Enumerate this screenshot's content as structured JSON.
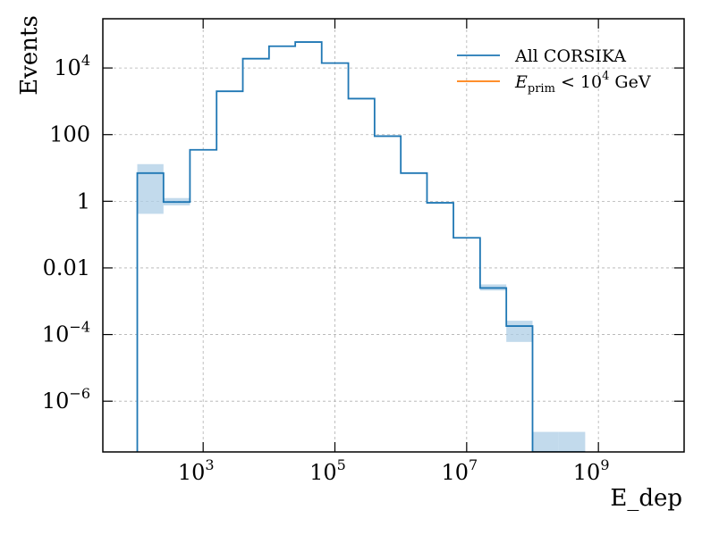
{
  "chart_data": {
    "type": "histogram",
    "xlabel": "E_dep",
    "ylabel": "Events",
    "xscale": "log",
    "yscale": "log",
    "xlim": [
      30,
      20000000000.0
    ],
    "ylim": [
      3e-08,
      300000
    ],
    "xticks": [
      {
        "value": 1000,
        "base": "10",
        "exp": "3"
      },
      {
        "value": 100000,
        "base": "10",
        "exp": "5"
      },
      {
        "value": 10000000,
        "base": "10",
        "exp": "7"
      },
      {
        "value": 1000000000,
        "base": "10",
        "exp": "9"
      }
    ],
    "yticks": [
      {
        "value": 1e-06,
        "base": "10",
        "exp": "−6"
      },
      {
        "value": 0.0001,
        "base": "10",
        "exp": "−4"
      },
      {
        "value": 0.01,
        "text": "0.01"
      },
      {
        "value": 1,
        "text": "1"
      },
      {
        "value": 100,
        "text": "100"
      },
      {
        "value": 10000,
        "base": "10",
        "exp": "4"
      }
    ],
    "grid": true,
    "legend_position": "top-right",
    "colors": {
      "all_corsika": "#1f77b4",
      "eprim_cut": "#ff7f0e",
      "band": "#aecde6"
    },
    "series": [
      {
        "name": "All CORSIKA",
        "color": "#1f77b4",
        "bin_edges": [
          100,
          250,
          630,
          1600,
          4000,
          10000,
          25000,
          63000,
          160000,
          400000,
          1000000,
          2500000,
          6300000,
          16000000,
          40000000,
          100000000,
          250000000,
          630000000
        ],
        "values": [
          7,
          0.95,
          35,
          2000,
          19000,
          45000,
          60000,
          14000,
          1200,
          90,
          7,
          0.9,
          0.08,
          0.0025,
          0.00018,
          3e-08,
          3e-08
        ],
        "err_low": [
          0.42,
          0.75,
          35,
          2000,
          19000,
          45000,
          60000,
          14000,
          1200,
          90,
          7,
          0.9,
          0.08,
          0.0021,
          6e-05,
          3e-08,
          3e-08
        ],
        "err_high": [
          13,
          1.25,
          35,
          2000,
          19000,
          45000,
          60000,
          14000,
          1200,
          90,
          7,
          0.9,
          0.08,
          0.0032,
          0.00026,
          1.2e-07,
          1.2e-07
        ]
      },
      {
        "name": "E_prim < 10^4 GeV",
        "color": "#ff7f0e",
        "values": []
      }
    ]
  },
  "legend": {
    "item1": "All CORSIKA",
    "item2_main": "E",
    "item2_sub": "prim",
    "item2_mid": " < 10",
    "item2_exp": "4",
    "item2_unit": " GeV"
  }
}
